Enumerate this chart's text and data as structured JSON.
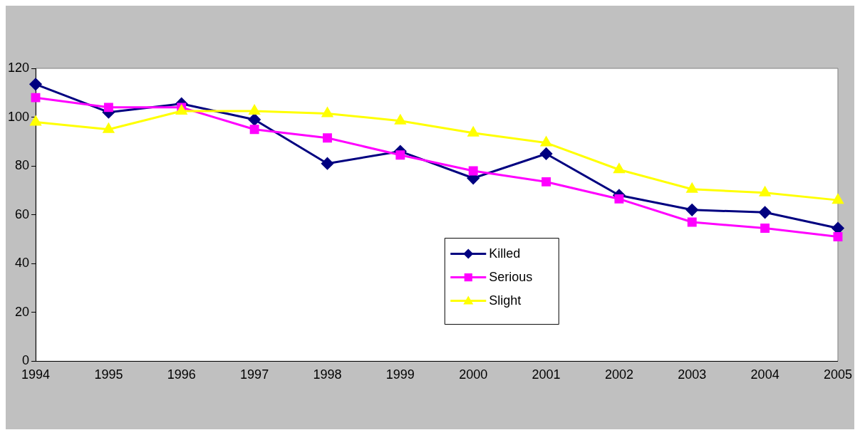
{
  "chart_data": {
    "type": "line",
    "categories": [
      "1994",
      "1995",
      "1996",
      "1997",
      "1998",
      "1999",
      "2000",
      "2001",
      "2002",
      "2003",
      "2004",
      "2005"
    ],
    "series": [
      {
        "name": "Killed",
        "color": "#000080",
        "marker": "diamond",
        "values": [
          113.5,
          102,
          105.5,
          99,
          81,
          86,
          75,
          85,
          68,
          62,
          61,
          54.5
        ]
      },
      {
        "name": "Serious",
        "color": "#ff00ff",
        "marker": "square",
        "values": [
          108,
          104,
          104,
          95,
          91.5,
          84.5,
          78,
          73.5,
          66.5,
          57,
          54.5,
          51
        ]
      },
      {
        "name": "Slight",
        "color": "#ffff00",
        "marker": "triangle",
        "values": [
          98,
          95,
          102.5,
          102.5,
          101.5,
          98.5,
          93.5,
          89.5,
          78.5,
          70.5,
          69,
          66
        ]
      }
    ],
    "ylim": [
      0,
      120
    ],
    "yticks": [
      0,
      20,
      40,
      60,
      80,
      100,
      120
    ],
    "grid": false,
    "legend": "bottom",
    "line_style": "solid"
  }
}
